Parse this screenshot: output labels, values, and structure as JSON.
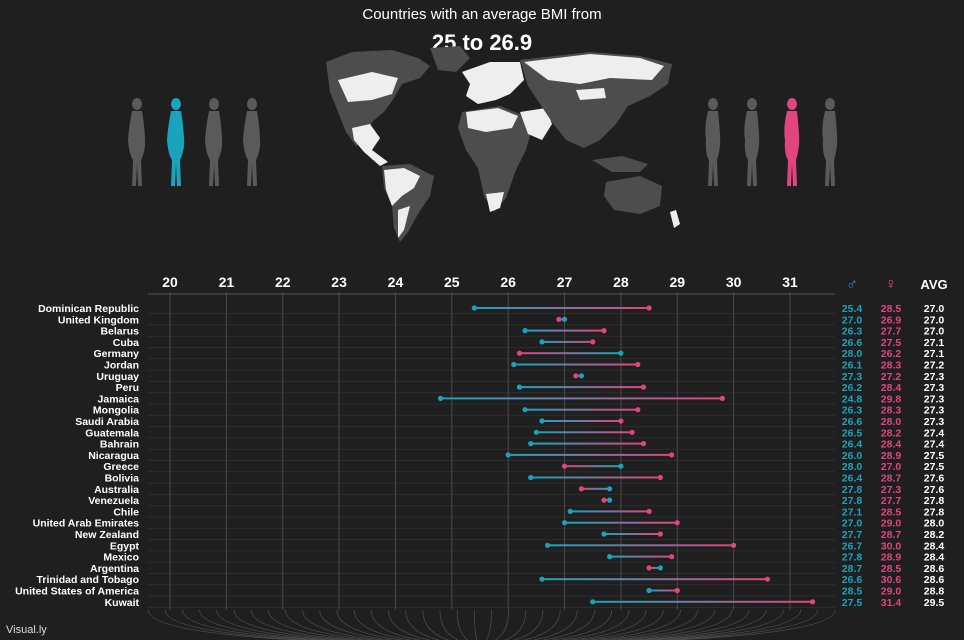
{
  "header": {
    "subtitle": "Countries with an average BMI from",
    "title": "25 to 26.9"
  },
  "footer": {
    "credit": "Visual.ly"
  },
  "colors": {
    "background": "#1f1f1f",
    "male": "#1aa3bd",
    "female": "#e0457f",
    "land_highlight": "#eeeeee",
    "land_other": "#4d4d4d",
    "figure_inactive": "#5a5a5a"
  },
  "icons": {
    "male_symbol": "♂",
    "female_symbol": "♀",
    "male_figures": "male-silhouette-icon",
    "female_figures": "female-silhouette-icon",
    "map": "world-map"
  },
  "chart_data": {
    "type": "dumbbell",
    "title": "25 to 26.9",
    "subtitle": "Countries with an average BMI from",
    "x_ticks": [
      20,
      21,
      22,
      23,
      24,
      25,
      26,
      27,
      28,
      29,
      30,
      31
    ],
    "xlim": [
      20,
      31
    ],
    "grid": true,
    "column_headers": {
      "male": "♂",
      "female": "♀",
      "avg": "AVG"
    },
    "series": [
      {
        "name": "♂",
        "color": "#1aa3bd"
      },
      {
        "name": "♀",
        "color": "#e0457f"
      }
    ],
    "rows": [
      {
        "country": "Dominican Republic",
        "male": 25.4,
        "female": 28.5,
        "avg": 27.0
      },
      {
        "country": "United Kingdom",
        "male": 27.0,
        "female": 26.9,
        "avg": 27.0
      },
      {
        "country": "Belarus",
        "male": 26.3,
        "female": 27.7,
        "avg": 27.0
      },
      {
        "country": "Cuba",
        "male": 26.6,
        "female": 27.5,
        "avg": 27.1
      },
      {
        "country": "Germany",
        "male": 28.0,
        "female": 26.2,
        "avg": 27.1
      },
      {
        "country": "Jordan",
        "male": 26.1,
        "female": 28.3,
        "avg": 27.2
      },
      {
        "country": "Uruguay",
        "male": 27.3,
        "female": 27.2,
        "avg": 27.3
      },
      {
        "country": "Peru",
        "male": 26.2,
        "female": 28.4,
        "avg": 27.3
      },
      {
        "country": "Jamaica",
        "male": 24.8,
        "female": 29.8,
        "avg": 27.3
      },
      {
        "country": "Mongolia",
        "male": 26.3,
        "female": 28.3,
        "avg": 27.3
      },
      {
        "country": "Saudi Arabia",
        "male": 26.6,
        "female": 28.0,
        "avg": 27.3
      },
      {
        "country": "Guatemala",
        "male": 26.5,
        "female": 28.2,
        "avg": 27.4
      },
      {
        "country": "Bahrain",
        "male": 26.4,
        "female": 28.4,
        "avg": 27.4
      },
      {
        "country": "Nicaragua",
        "male": 26.0,
        "female": 28.9,
        "avg": 27.5
      },
      {
        "country": "Greece",
        "male": 28.0,
        "female": 27.0,
        "avg": 27.5
      },
      {
        "country": "Bolivia",
        "male": 26.4,
        "female": 28.7,
        "avg": 27.6
      },
      {
        "country": "Australia",
        "male": 27.8,
        "female": 27.3,
        "avg": 27.6
      },
      {
        "country": "Venezuela",
        "male": 27.8,
        "female": 27.7,
        "avg": 27.8
      },
      {
        "country": "Chile",
        "male": 27.1,
        "female": 28.5,
        "avg": 27.8
      },
      {
        "country": "United Arab Emirates",
        "male": 27.0,
        "female": 29.0,
        "avg": 28.0
      },
      {
        "country": "New Zealand",
        "male": 27.7,
        "female": 28.7,
        "avg": 28.2
      },
      {
        "country": "Egypt",
        "male": 26.7,
        "female": 30.0,
        "avg": 28.4
      },
      {
        "country": "Mexico",
        "male": 27.8,
        "female": 28.9,
        "avg": 28.4
      },
      {
        "country": "Argentina",
        "male": 28.7,
        "female": 28.5,
        "avg": 28.6
      },
      {
        "country": "Trinidad and Tobago",
        "male": 26.6,
        "female": 30.6,
        "avg": 28.6
      },
      {
        "country": "United States of America",
        "male": 28.5,
        "female": 29.0,
        "avg": 28.8
      },
      {
        "country": "Kuwait",
        "male": 27.5,
        "female": 31.4,
        "avg": 29.5
      }
    ]
  }
}
